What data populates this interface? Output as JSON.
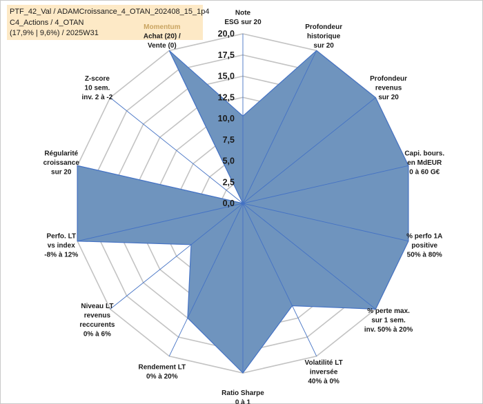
{
  "title_lines": [
    "PTF_42_Val / ADAMCroissance_4_OTAN_202408_15_1p4",
    "C4_Actions / 4_OTAN",
    "(17,9% | 9,6%) / 2025W31"
  ],
  "chart_data": {
    "type": "radar",
    "axis_range": [
      0,
      20
    ],
    "ticks": [
      "0,0",
      "2,5",
      "5,0",
      "7,5",
      "10,0",
      "12,5",
      "15,0",
      "17,5",
      "20,0"
    ],
    "tick_values": [
      0,
      2.5,
      5,
      7.5,
      10,
      12.5,
      15,
      17.5,
      20
    ],
    "colors": {
      "fill": "#6f94be",
      "stroke": "#4472c4",
      "grid": "#c3c3c3",
      "momentum_label": "#c9a461"
    },
    "axes": [
      {
        "label": [
          "Note",
          "ESG sur 20"
        ],
        "value": 10.3
      },
      {
        "label": [
          "Profondeur",
          "historique",
          "sur 20"
        ],
        "value": 20
      },
      {
        "label": [
          "Profondeur",
          "revenus",
          "sur 20"
        ],
        "value": 20
      },
      {
        "label": [
          "Capi. bours.",
          "en MdEUR",
          "0 à 60 G€"
        ],
        "value": 20
      },
      {
        "label": [
          "% perfo 1A",
          "positive",
          "50% à 80%"
        ],
        "value": 20
      },
      {
        "label": [
          "% perte max.",
          "sur 1 sem.",
          "inv. 50% à 20%"
        ],
        "value": 20
      },
      {
        "label": [
          "Volatilité LT",
          "inversée",
          "40% à 0%"
        ],
        "value": 13.4
      },
      {
        "label": [
          "Ratio Sharpe",
          "0 à 1"
        ],
        "value": 20
      },
      {
        "label": [
          "Rendement LT",
          "0% à 20%"
        ],
        "value": 15
      },
      {
        "label": [
          "Niveau LT",
          "revenus",
          "reccurents",
          "0% à 6%"
        ],
        "value": 7.8
      },
      {
        "label": [
          "Perfo. LT",
          "vs index",
          "-8% à 12%"
        ],
        "value": 20
      },
      {
        "label": [
          "Régularité",
          "croissance",
          "sur 20"
        ],
        "value": 20
      },
      {
        "label": [
          "Z-score",
          "10 sem.",
          "inv. 2 à -2"
        ],
        "value": 0
      },
      {
        "label": [
          "Momentum",
          "Achat (20) /",
          "Vente (0)"
        ],
        "value": 20
      }
    ]
  }
}
